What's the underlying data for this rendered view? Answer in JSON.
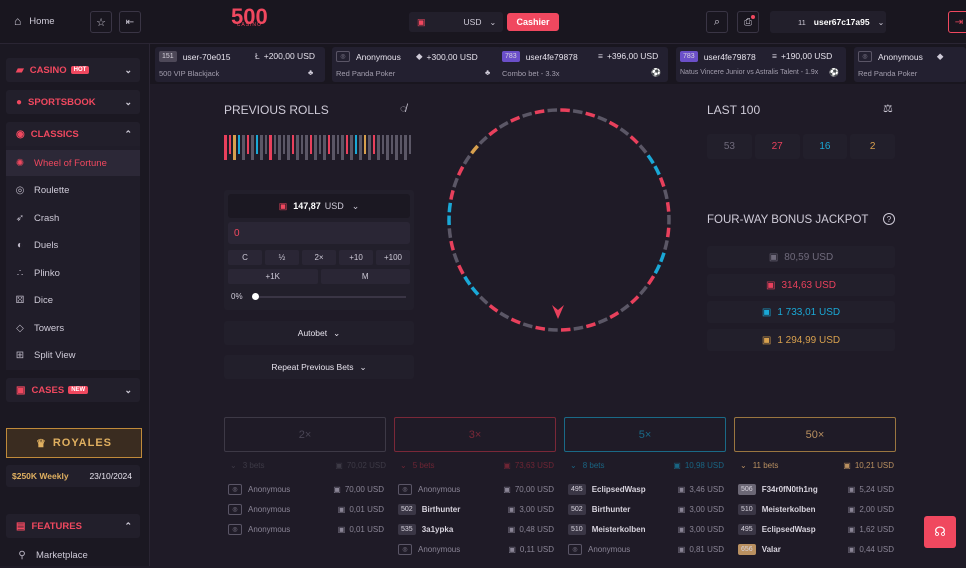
{
  "header": {
    "home_label": "Home",
    "logo_text": "500",
    "logo_sub": "CASINO",
    "currency": "USD",
    "cashier_label": "Cashier",
    "user_level": "11",
    "username": "user67c17a95"
  },
  "ticker": [
    {
      "level": "151",
      "user": "user-70e015",
      "amount": "+200,00 USD",
      "game": "500 VIP Blackjack",
      "currency_icon": "litecoin-icon"
    },
    {
      "level": "",
      "user": "Anonymous",
      "amount": "+300,00 USD",
      "game": "Red Panda Poker",
      "currency_icon": "gem-icon"
    },
    {
      "level": "783",
      "user": "user4fe79878",
      "amount": "+396,00 USD",
      "game": "Combo bet - 3.3x",
      "currency_icon": "stack-icon"
    },
    {
      "level": "783",
      "user": "user4fe79878",
      "amount": "+190,00 USD",
      "game": "Natus Vincere Junior vs Astralis Talent - 1.9x",
      "currency_icon": "stack-icon"
    },
    {
      "level": "",
      "user": "Anonymous",
      "amount": "",
      "game": "Red Panda Poker",
      "currency_icon": "gem-icon"
    }
  ],
  "sidebar": {
    "casino_label": "CASINO",
    "casino_badge": "HOT",
    "sportsbook_label": "SPORTSBOOK",
    "classics_label": "CLASSICS",
    "items": [
      {
        "label": "Wheel of Fortune",
        "icon": "wheel-icon",
        "active": true
      },
      {
        "label": "Roulette",
        "icon": "roulette-icon",
        "active": false
      },
      {
        "label": "Crash",
        "icon": "rocket-icon",
        "active": false
      },
      {
        "label": "Duels",
        "icon": "duels-icon",
        "active": false
      },
      {
        "label": "Plinko",
        "icon": "plinko-icon",
        "active": false
      },
      {
        "label": "Dice",
        "icon": "dice-icon",
        "active": false
      },
      {
        "label": "Towers",
        "icon": "diamond-icon",
        "active": false
      },
      {
        "label": "Split View",
        "icon": "split-view-icon",
        "active": false
      }
    ],
    "cases_label": "CASES",
    "cases_badge": "NEW",
    "royales_label": "ROYALES",
    "weekly_label": "$250K Weekly",
    "weekly_date": "23/10/2024",
    "features_label": "FEATURES",
    "marketplace_label": "Marketplace"
  },
  "previous_rolls": {
    "title": "PREVIOUS ROLLS",
    "rolls": [
      "red",
      "red",
      "gold",
      "blue",
      "grey",
      "red",
      "grey",
      "blue",
      "grey",
      "grey",
      "red",
      "grey",
      "grey",
      "grey",
      "grey",
      "red",
      "grey",
      "grey",
      "grey",
      "red",
      "grey",
      "grey",
      "grey",
      "red",
      "grey",
      "grey",
      "grey",
      "red",
      "grey",
      "blue",
      "grey",
      "gold",
      "grey",
      "red",
      "grey",
      "grey",
      "grey",
      "grey",
      "grey",
      "grey",
      "grey",
      "grey"
    ]
  },
  "bet": {
    "balance": "147,87",
    "currency": "USD",
    "amount": "0",
    "buttons": [
      "C",
      "½",
      "2×",
      "+10",
      "+100"
    ],
    "buttons2": [
      "+1K",
      "M"
    ],
    "slider_label": "0%",
    "slider_value": 0,
    "autobet_label": "Autobet",
    "repeat_label": "Repeat Previous Bets"
  },
  "last100": {
    "title": "LAST 100",
    "values": [
      {
        "value": "53",
        "color": "grey"
      },
      {
        "value": "27",
        "color": "red"
      },
      {
        "value": "16",
        "color": "blue"
      },
      {
        "value": "2",
        "color": "gold"
      }
    ]
  },
  "jackpot": {
    "title": "FOUR-WAY BONUS JACKPOT",
    "entries": [
      {
        "value": "80,59 USD",
        "color": "grey"
      },
      {
        "value": "314,63 USD",
        "color": "red"
      },
      {
        "value": "1 733,01 USD",
        "color": "blue"
      },
      {
        "value": "1 294,99 USD",
        "color": "gold"
      }
    ]
  },
  "multipliers": [
    {
      "label": "2×",
      "color": "grey",
      "bets": "3 bets",
      "total": "70,02 USD"
    },
    {
      "label": "3×",
      "color": "red",
      "bets": "5 bets",
      "total": "73,63 USD"
    },
    {
      "label": "5×",
      "color": "blue",
      "bets": "8 bets",
      "total": "10,98 USD"
    },
    {
      "label": "50×",
      "color": "gold",
      "bets": "11 bets",
      "total": "10,21 USD"
    }
  ],
  "bet_rows": [
    [
      {
        "level": "",
        "user": "Anonymous",
        "amount": "70,00 USD"
      },
      {
        "level": "",
        "user": "Anonymous",
        "amount": "0,01 USD"
      },
      {
        "level": "",
        "user": "Anonymous",
        "amount": "0,01 USD"
      }
    ],
    [
      {
        "level": "",
        "user": "Anonymous",
        "amount": "70,00 USD"
      },
      {
        "level": "502",
        "user": "Birthunter",
        "amount": "3,00 USD"
      },
      {
        "level": "535",
        "user": "3a1ypka",
        "amount": "0,48 USD"
      },
      {
        "level": "",
        "user": "Anonymous",
        "amount": "0,11 USD"
      }
    ],
    [
      {
        "level": "495",
        "user": "EclipsedWasp",
        "amount": "3,46 USD"
      },
      {
        "level": "502",
        "user": "Birthunter",
        "amount": "3,00 USD"
      },
      {
        "level": "510",
        "user": "Meisterkolben",
        "amount": "3,00 USD"
      },
      {
        "level": "",
        "user": "Anonymous",
        "amount": "0,81 USD"
      }
    ],
    [
      {
        "level": "506",
        "user": "F34r0fN0th1ng",
        "amount": "5,24 USD"
      },
      {
        "level": "510",
        "user": "Meisterkolben",
        "amount": "2,00 USD"
      },
      {
        "level": "495",
        "user": "EclipsedWasp",
        "amount": "1,62 USD"
      },
      {
        "level": "656",
        "user": "Valar",
        "amount": "0,44 USD"
      }
    ]
  ],
  "colors": {
    "red": "#e8405c",
    "blue": "#1aa8d6",
    "gold": "#d7a04e",
    "grey": "#5b5766",
    "accent": "#f0485f"
  }
}
